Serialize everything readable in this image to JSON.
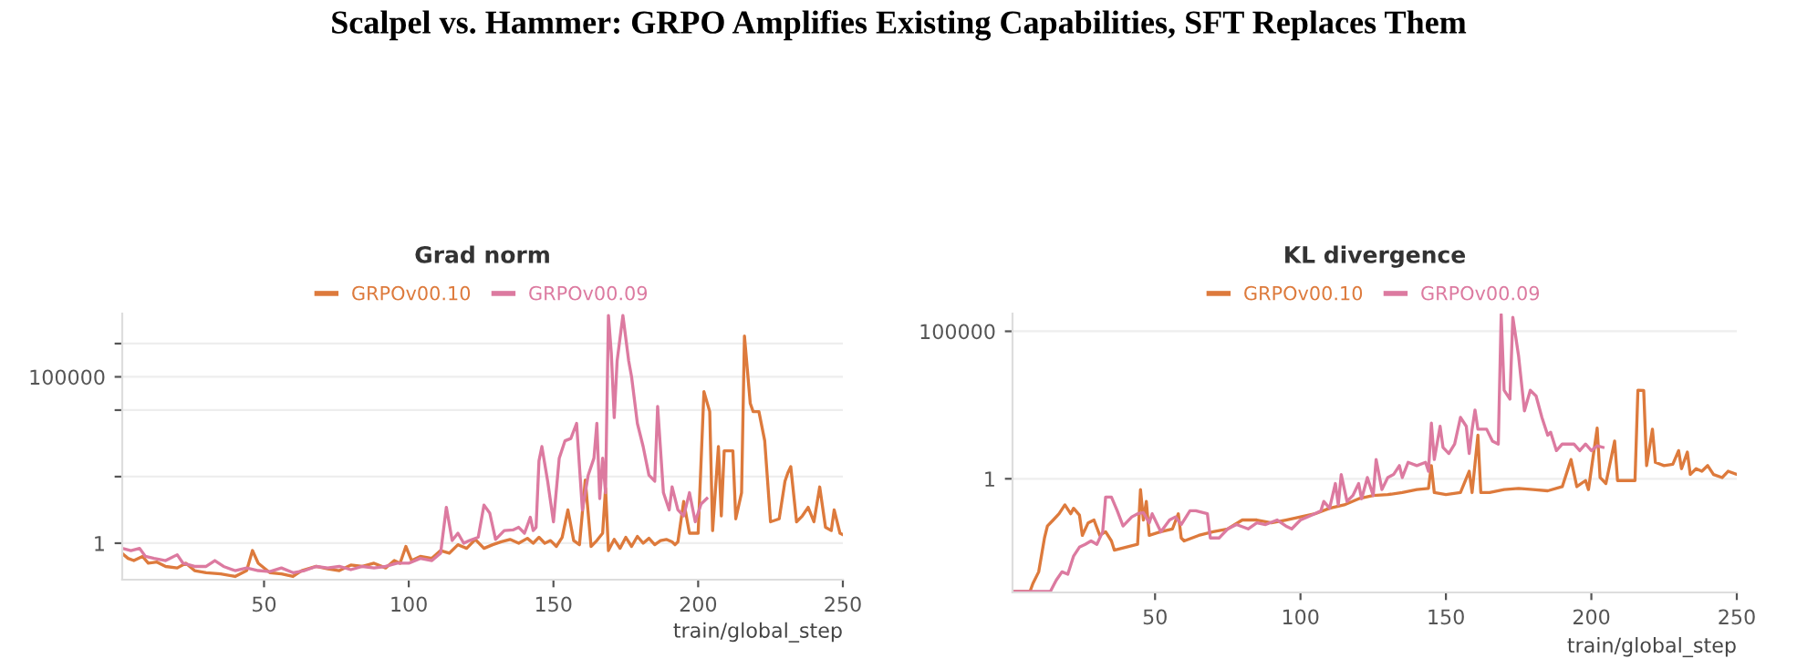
{
  "chart_data": [
    {
      "type": "line",
      "title": "Grad norm",
      "annotations": [
        "Scalpel vs. Hammer: GRPO Amplifies Existing Capabilities, SFT Replaces Them"
      ],
      "xlabel": "train/global_step",
      "log": "y",
      "grid": "y",
      "legend": "top",
      "xlim": [
        1,
        250
      ],
      "ylim": [
        0.08,
        8000000
      ],
      "xticks": [
        50,
        100,
        150,
        200,
        250
      ],
      "yticks": [
        1,
        {
          "value": 100,
          "label": null
        },
        {
          "value": 10000,
          "label": null
        },
        100000,
        {
          "value": 1000000,
          "label": null
        }
      ],
      "series": [
        {
          "name": "GRPOv00.10",
          "color": "#dd7a3c",
          "x": [
            1,
            3,
            5,
            8,
            10,
            13,
            16,
            20,
            23,
            26,
            30,
            35,
            40,
            44,
            46,
            48,
            52,
            56,
            60,
            63,
            68,
            72,
            76,
            80,
            84,
            88,
            92,
            95,
            97,
            99,
            101,
            104,
            108,
            111,
            114,
            117,
            120,
            123,
            126,
            129,
            132,
            135,
            138,
            141,
            143,
            145,
            147,
            149,
            151,
            153,
            155,
            157,
            159,
            161,
            163,
            165,
            167,
            168,
            169,
            171,
            173,
            175,
            177,
            179,
            181,
            183,
            185,
            187,
            189,
            191,
            192,
            193,
            195,
            197,
            200,
            202,
            204,
            205,
            207,
            208,
            209,
            212,
            213,
            215,
            216,
            218,
            219,
            221,
            223,
            225,
            228,
            230,
            231,
            232,
            234,
            236,
            238,
            240,
            242,
            244,
            246,
            247,
            249,
            250
          ],
          "values": [
            0.49,
            0.35,
            0.3,
            0.4,
            0.25,
            0.27,
            0.2,
            0.18,
            0.25,
            0.15,
            0.13,
            0.12,
            0.1,
            0.15,
            0.6,
            0.25,
            0.13,
            0.12,
            0.1,
            0.15,
            0.2,
            0.17,
            0.15,
            0.22,
            0.2,
            0.25,
            0.18,
            0.3,
            0.25,
            0.8,
            0.3,
            0.4,
            0.35,
            0.6,
            0.5,
            0.9,
            0.7,
            1.3,
            0.7,
            0.9,
            1.1,
            1.3,
            1.0,
            1.4,
            1.0,
            1.5,
            1.0,
            1.2,
            0.8,
            1.5,
            10,
            1.2,
            0.9,
            79,
            0.8,
            1.2,
            2,
            45,
            0.6,
            1.3,
            0.7,
            1.5,
            0.8,
            1.6,
            1.0,
            1.4,
            0.9,
            1.2,
            1.3,
            1.1,
            0.9,
            1.1,
            18,
            2,
            2,
            36000,
            9000,
            2.4,
            800,
            6.6,
            600,
            600,
            5.4,
            33,
            1700000,
            16000,
            9000,
            9000,
            1200,
            4.4,
            5.4,
            73,
            130,
            200,
            4.4,
            6.6,
            12,
            4.4,
            49,
            3,
            2.4,
            10,
            2,
            1.8
          ]
        },
        {
          "name": "GRPOv00.09",
          "color": "#dc7aa0",
          "x": [
            1,
            4,
            7,
            9,
            12,
            16,
            20,
            22,
            26,
            30,
            33,
            36,
            40,
            44,
            48,
            52,
            56,
            60,
            64,
            68,
            72,
            76,
            80,
            84,
            88,
            92,
            96,
            100,
            104,
            108,
            111,
            113,
            115,
            117,
            119,
            121,
            124,
            126,
            128,
            130,
            133,
            136,
            138,
            140,
            142,
            143,
            144,
            145,
            146,
            148,
            150,
            152,
            154,
            156,
            158,
            160,
            162,
            164,
            165,
            166,
            167,
            168,
            169,
            170,
            171,
            172,
            174,
            176,
            177,
            179,
            181,
            183,
            185,
            186,
            188,
            190,
            191,
            193,
            195,
            197,
            199,
            201,
            203
          ],
          "values": [
            0.7,
            0.6,
            0.7,
            0.4,
            0.35,
            0.3,
            0.45,
            0.25,
            0.2,
            0.2,
            0.3,
            0.2,
            0.15,
            0.18,
            0.15,
            0.14,
            0.18,
            0.13,
            0.15,
            0.2,
            0.18,
            0.2,
            0.16,
            0.2,
            0.18,
            0.2,
            0.25,
            0.25,
            0.35,
            0.3,
            0.5,
            12,
            1.2,
            2,
            1.0,
            1.2,
            1.5,
            14,
            8,
            1.3,
            2.4,
            2.5,
            3,
            2,
            6,
            2.4,
            3,
            300,
            800,
            73,
            4.4,
            360,
            1200,
            1400,
            4000,
            10,
            110,
            360,
            4000,
            22,
            360,
            33,
            7000000,
            500000,
            6000,
            300000,
            7000000,
            300000,
            100000,
            4000,
            800,
            110,
            73,
            13000,
            33,
            10,
            49,
            10,
            6.6,
            33,
            4.4,
            15,
            22
          ]
        }
      ]
    },
    {
      "type": "line",
      "title": "KL divergence",
      "xlabel": "train/global_step",
      "log": "y",
      "grid": "y",
      "legend": "top",
      "xlim": [
        1,
        250
      ],
      "ylim": [
        0.00014,
        400000
      ],
      "xticks": [
        50,
        100,
        150,
        200,
        250
      ],
      "yticks": [
        1,
        100000
      ],
      "series": [
        {
          "name": "GRPOv00.10",
          "color": "#dd7a3c",
          "x": [
            1,
            7,
            8,
            10,
            12,
            13,
            15,
            17,
            19,
            21,
            22,
            24,
            25,
            27,
            29,
            31,
            33,
            35,
            36,
            40,
            44,
            45,
            46,
            47,
            48,
            52,
            56,
            58,
            59,
            60,
            65,
            70,
            75,
            80,
            85,
            90,
            95,
            100,
            105,
            110,
            115,
            120,
            125,
            130,
            135,
            140,
            144,
            145,
            146,
            150,
            155,
            158,
            159,
            161,
            162,
            165,
            170,
            175,
            180,
            185,
            190,
            193,
            195,
            198,
            199,
            202,
            203,
            205,
            208,
            209,
            212,
            215,
            216,
            218,
            219,
            221,
            222,
            225,
            228,
            230,
            231,
            233,
            234,
            236,
            238,
            240,
            242,
            245,
            247,
            250
          ],
          "values": [
            0.00015,
            0.00015,
            0.00028,
            0.0007,
            0.01,
            0.025,
            0.04,
            0.065,
            0.13,
            0.065,
            0.1,
            0.059,
            0.012,
            0.032,
            0.04,
            0.012,
            0.016,
            0.0078,
            0.0038,
            0.0048,
            0.006,
            0.43,
            0.04,
            0.17,
            0.012,
            0.016,
            0.02,
            0.065,
            0.0098,
            0.0078,
            0.012,
            0.016,
            0.02,
            0.04,
            0.04,
            0.032,
            0.04,
            0.051,
            0.065,
            0.1,
            0.13,
            0.21,
            0.27,
            0.29,
            0.34,
            0.43,
            0.47,
            2.8,
            0.34,
            0.29,
            0.34,
            1.8,
            0.34,
            30,
            0.34,
            0.34,
            0.43,
            0.47,
            0.43,
            0.39,
            0.54,
            4.5,
            0.54,
            0.87,
            0.43,
            52,
            1.1,
            0.69,
            19,
            0.87,
            0.87,
            0.87,
            1000,
            980,
            2.8,
            48,
            3.6,
            2.8,
            3.1,
            9,
            2.2,
            8,
            1.4,
            2.2,
            1.8,
            2.8,
            1.4,
            1.1,
            1.8,
            1.4
          ]
        },
        {
          "name": "GRPOv00.09",
          "color": "#dc7aa0",
          "x": [
            1,
            14,
            16,
            18,
            20,
            22,
            24,
            26,
            28,
            30,
            32,
            33,
            35,
            37,
            39,
            42,
            44,
            46,
            48,
            49,
            52,
            55,
            57,
            59,
            62,
            64,
            68,
            69,
            72,
            75,
            78,
            82,
            85,
            88,
            92,
            95,
            97,
            100,
            104,
            107,
            108,
            110,
            112,
            113,
            114,
            116,
            118,
            120,
            121,
            123,
            125,
            126,
            128,
            130,
            132,
            134,
            135,
            137,
            140,
            143,
            144,
            145,
            146,
            148,
            149,
            151,
            153,
            155,
            157,
            158,
            159,
            160,
            161,
            164,
            166,
            168,
            169,
            170,
            172,
            173,
            175,
            177,
            179,
            181,
            183,
            185,
            186,
            188,
            190,
            192,
            194,
            196,
            198,
            200,
            202,
            204
          ],
          "values": [
            0.00015,
            0.00015,
            0.00036,
            0.0007,
            0.00058,
            0.0024,
            0.0048,
            0.006,
            0.0078,
            0.006,
            0.016,
            0.24,
            0.24,
            0.082,
            0.025,
            0.051,
            0.065,
            0.071,
            0.032,
            0.065,
            0.016,
            0.04,
            0.051,
            0.028,
            0.082,
            0.082,
            0.065,
            0.0098,
            0.0098,
            0.02,
            0.028,
            0.02,
            0.032,
            0.028,
            0.04,
            0.025,
            0.02,
            0.04,
            0.059,
            0.082,
            0.17,
            0.1,
            0.69,
            0.13,
            1.4,
            0.17,
            0.27,
            0.69,
            0.21,
            1.1,
            0.27,
            4.5,
            0.43,
            1.1,
            1.4,
            2.8,
            1.1,
            3.6,
            2.8,
            3.6,
            1.8,
            77,
            4.5,
            60,
            11.6,
            7.2,
            15,
            120,
            60,
            7.2,
            48,
            215,
            48,
            48,
            19,
            15,
            370000,
            1000,
            500,
            300000,
            14000,
            200,
            1000,
            640,
            120,
            30,
            38,
            9,
            15,
            15,
            15,
            9,
            15,
            9,
            13,
            11.6
          ]
        }
      ]
    }
  ]
}
